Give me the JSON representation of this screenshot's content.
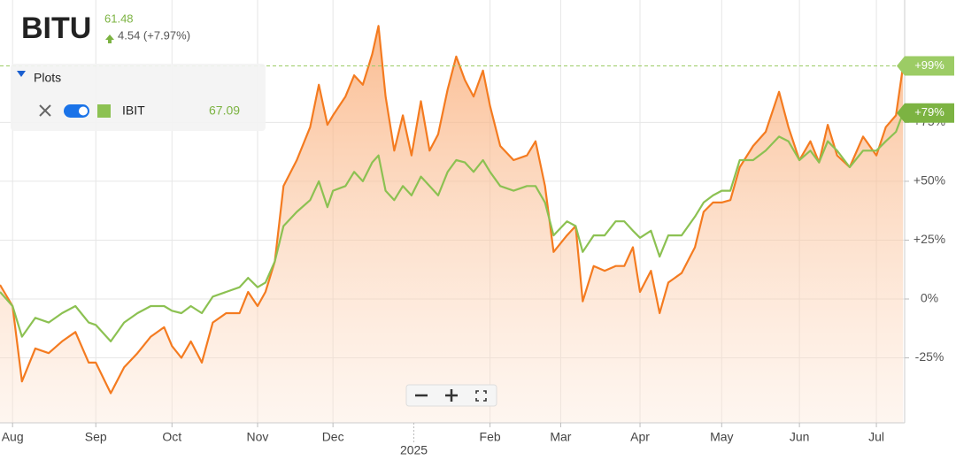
{
  "header": {
    "price": "61.48",
    "change": "4.54 (+7.97%)"
  },
  "legend_panel": {
    "title": "Plots",
    "value": "67.09"
  },
  "chart_data": {
    "type": "line",
    "x": [
      -0.16,
      0,
      0.12,
      0.29,
      0.46,
      0.63,
      0.8,
      0.97,
      1.06,
      1.25,
      1.42,
      1.59,
      1.76,
      1.93,
      2.03,
      2.15,
      2.27,
      2.41,
      2.55,
      2.72,
      2.89,
      3.0,
      3.12,
      3.22,
      3.34,
      3.45,
      3.62,
      3.79,
      3.9,
      4.01,
      4.08,
      4.24,
      4.35,
      4.46,
      4.58,
      4.66,
      4.75,
      4.86,
      4.97,
      5.08,
      5.2,
      5.31,
      5.42,
      5.54,
      5.65,
      5.76,
      5.87,
      5.99,
      6.08,
      6.21,
      6.38,
      6.55,
      6.66,
      6.78,
      6.89,
      7.06,
      7.17,
      7.26,
      7.4,
      7.54,
      7.68,
      7.79,
      7.9,
      7.99,
      8.13,
      8.24,
      8.35,
      8.52,
      8.69,
      8.8,
      8.92,
      9.03,
      9.14,
      9.26,
      9.43,
      9.59,
      9.76,
      9.88,
      10.02,
      10.16,
      10.27,
      10.38,
      10.5,
      10.66,
      10.83,
      11.0,
      11.12,
      11.25,
      11.34
    ],
    "series": [
      {
        "name": "BITU",
        "color": "#f47b20",
        "area": true,
        "end_label": "+99%",
        "values": [
          6,
          -3,
          -35,
          -21,
          -23,
          -18,
          -14,
          -27,
          -27,
          -40,
          -29,
          -23,
          -16,
          -12,
          -20,
          -25,
          -18,
          -27,
          -10,
          -6,
          -6,
          3,
          -3,
          3,
          16,
          48,
          59,
          73,
          91,
          74,
          78,
          86,
          95,
          91,
          104,
          116,
          86,
          63,
          78,
          61,
          84,
          63,
          70,
          89,
          103,
          93,
          86,
          97,
          82,
          65,
          59,
          61,
          67,
          48,
          20,
          27,
          31,
          -1,
          14,
          12,
          14,
          14,
          22,
          3,
          12,
          -6,
          7,
          11,
          22,
          37,
          41,
          41,
          42,
          56,
          65,
          71,
          88,
          73,
          59,
          67,
          58,
          74,
          61,
          56,
          69,
          61,
          73,
          78,
          99
        ]
      },
      {
        "name": "IBIT",
        "color": "#8cc152",
        "area": false,
        "end_label": "+79%",
        "values": [
          3,
          -3,
          -16,
          -8,
          -10,
          -6,
          -3,
          -10,
          -11,
          -18,
          -10,
          -6,
          -3,
          -3,
          -5,
          -6,
          -3,
          -6,
          1,
          3,
          5,
          9,
          5,
          7,
          16,
          31,
          37,
          42,
          50,
          39,
          46,
          48,
          54,
          50,
          58,
          61,
          46,
          42,
          48,
          44,
          52,
          48,
          44,
          54,
          59,
          58,
          54,
          59,
          54,
          48,
          46,
          48,
          48,
          41,
          27,
          33,
          31,
          20,
          27,
          27,
          33,
          33,
          29,
          26,
          29,
          18,
          27,
          27,
          35,
          41,
          44,
          46,
          46,
          59,
          59,
          63,
          69,
          67,
          59,
          63,
          58,
          67,
          63,
          56,
          63,
          63,
          67,
          71,
          79
        ]
      }
    ],
    "xlim": [
      -0.16,
      11.36
    ],
    "xticks": [
      {
        "value": 0,
        "label": "Aug"
      },
      {
        "value": 1.06,
        "label": "Sep"
      },
      {
        "value": 2.03,
        "label": "Oct"
      },
      {
        "value": 3.12,
        "label": "Nov"
      },
      {
        "value": 4.08,
        "label": "Dec"
      },
      {
        "value": 5.11,
        "label": "2025"
      },
      {
        "value": 6.08,
        "label": "Feb"
      },
      {
        "value": 6.98,
        "label": "Mar"
      },
      {
        "value": 7.99,
        "label": "Apr"
      },
      {
        "value": 9.03,
        "label": "May"
      },
      {
        "value": 10.02,
        "label": "Jun"
      },
      {
        "value": 11.0,
        "label": "Jul"
      }
    ],
    "ylim": [
      -52.6,
      127
    ],
    "yticks": [
      {
        "value": 75,
        "label": "+75%"
      },
      {
        "value": 50,
        "label": "+50%"
      },
      {
        "value": 25,
        "label": "+25%"
      },
      {
        "value": 0,
        "label": "0%"
      },
      {
        "value": -25,
        "label": "-25%"
      }
    ],
    "grid": true
  }
}
